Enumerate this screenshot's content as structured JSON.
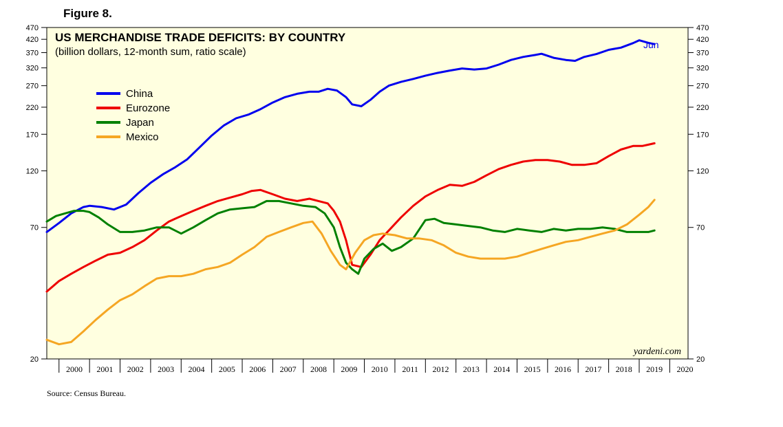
{
  "figure_label": "Figure 8.",
  "source": "Source: Census Bureau.",
  "chart_data": {
    "type": "line",
    "title": "US MERCHANDISE TRADE DEFICITS: BY COUNTRY",
    "subtitle": "(billion dollars, 12-month sum, ratio scale)",
    "watermark": "yardeni.com",
    "end_annotation": "Jun",
    "y_scale": "log",
    "ylim": [
      20,
      470
    ],
    "y_ticks": [
      20,
      70,
      120,
      170,
      220,
      270,
      320,
      370,
      420,
      470
    ],
    "x_range": [
      1999.6,
      2020.6
    ],
    "x_ticks": [
      "2000",
      "2001",
      "2002",
      "2003",
      "2004",
      "2005",
      "2006",
      "2007",
      "2008",
      "2009",
      "2010",
      "2011",
      "2012",
      "2013",
      "2014",
      "2015",
      "2016",
      "2017",
      "2018",
      "2019",
      "2020"
    ],
    "legend_position": "top-left",
    "grid": false,
    "background_color": "#ffffe0",
    "series": [
      {
        "name": "China",
        "color": "#0000ee",
        "x": [
          1999.6,
          2000.0,
          2000.4,
          2000.8,
          2001.0,
          2001.4,
          2001.8,
          2002.2,
          2002.6,
          2003.0,
          2003.4,
          2003.8,
          2004.2,
          2004.6,
          2005.0,
          2005.4,
          2005.8,
          2006.2,
          2006.6,
          2007.0,
          2007.4,
          2007.8,
          2008.2,
          2008.5,
          2008.8,
          2009.1,
          2009.4,
          2009.6,
          2009.9,
          2010.2,
          2010.5,
          2010.8,
          2011.2,
          2011.6,
          2012.0,
          2012.4,
          2012.8,
          2013.2,
          2013.6,
          2014.0,
          2014.4,
          2014.8,
          2015.2,
          2015.6,
          2015.8,
          2016.2,
          2016.6,
          2016.9,
          2017.2,
          2017.6,
          2018.0,
          2018.4,
          2018.8,
          2019.0,
          2019.3,
          2019.5
        ],
        "values": [
          67,
          73,
          80,
          85,
          86,
          85,
          83,
          87,
          97,
          107,
          116,
          124,
          134,
          150,
          168,
          185,
          198,
          205,
          216,
          230,
          242,
          250,
          255,
          255,
          262,
          258,
          242,
          226,
          222,
          236,
          255,
          270,
          280,
          288,
          297,
          305,
          312,
          318,
          315,
          318,
          330,
          345,
          355,
          362,
          366,
          352,
          345,
          342,
          355,
          365,
          380,
          388,
          405,
          416,
          406,
          401
        ]
      },
      {
        "name": "Eurozone",
        "color": "#ee0000",
        "x": [
          1999.6,
          2000.0,
          2000.4,
          2000.8,
          2001.2,
          2001.6,
          2002.0,
          2002.4,
          2002.8,
          2003.2,
          2003.6,
          2004.0,
          2004.4,
          2004.8,
          2005.2,
          2005.6,
          2006.0,
          2006.3,
          2006.6,
          2007.0,
          2007.4,
          2007.8,
          2008.2,
          2008.5,
          2008.8,
          2009.0,
          2009.2,
          2009.4,
          2009.6,
          2009.9,
          2010.2,
          2010.5,
          2010.8,
          2011.2,
          2011.6,
          2012.0,
          2012.4,
          2012.8,
          2013.2,
          2013.6,
          2014.0,
          2014.4,
          2014.8,
          2015.2,
          2015.6,
          2016.0,
          2016.4,
          2016.8,
          2017.2,
          2017.6,
          2018.0,
          2018.4,
          2018.8,
          2019.1,
          2019.3,
          2019.5
        ],
        "values": [
          38,
          42,
          45,
          48,
          51,
          54,
          55,
          58,
          62,
          68,
          74,
          78,
          82,
          86,
          90,
          93,
          96,
          99,
          100,
          96,
          92,
          90,
          92,
          90,
          88,
          82,
          74,
          62,
          49,
          48,
          54,
          62,
          68,
          77,
          86,
          94,
          100,
          105,
          104,
          108,
          115,
          122,
          127,
          131,
          133,
          133,
          131,
          127,
          127,
          129,
          138,
          147,
          152,
          152,
          154,
          156
        ]
      },
      {
        "name": "Japan",
        "color": "#008000",
        "x": [
          1999.6,
          1999.9,
          2000.2,
          2000.5,
          2000.8,
          2001.0,
          2001.3,
          2001.6,
          2002.0,
          2002.4,
          2002.8,
          2003.2,
          2003.6,
          2004.0,
          2004.4,
          2004.8,
          2005.2,
          2005.6,
          2006.0,
          2006.4,
          2006.8,
          2007.2,
          2007.6,
          2008.0,
          2008.4,
          2008.7,
          2009.0,
          2009.2,
          2009.4,
          2009.6,
          2009.8,
          2010.0,
          2010.3,
          2010.6,
          2010.9,
          2011.2,
          2011.6,
          2012.0,
          2012.3,
          2012.6,
          2013.0,
          2013.4,
          2013.8,
          2014.2,
          2014.6,
          2015.0,
          2015.4,
          2015.8,
          2016.2,
          2016.6,
          2017.0,
          2017.4,
          2017.8,
          2018.2,
          2018.6,
          2019.0,
          2019.3,
          2019.5
        ],
        "values": [
          74,
          78,
          80,
          82,
          82,
          81,
          77,
          72,
          67,
          67,
          68,
          70,
          70,
          66,
          70,
          75,
          80,
          83,
          84,
          85,
          90,
          90,
          88,
          86,
          85,
          80,
          70,
          58,
          50,
          47,
          45,
          52,
          57,
          60,
          56,
          58,
          63,
          75,
          76,
          73,
          72,
          71,
          70,
          68,
          67,
          69,
          68,
          67,
          69,
          68,
          69,
          69,
          70,
          69,
          67,
          67,
          67,
          68
        ]
      },
      {
        "name": "Mexico",
        "color": "#f5a623",
        "x": [
          1999.6,
          2000.0,
          2000.4,
          2000.8,
          2001.2,
          2001.6,
          2002.0,
          2002.4,
          2002.8,
          2003.2,
          2003.6,
          2004.0,
          2004.4,
          2004.8,
          2005.2,
          2005.6,
          2006.0,
          2006.4,
          2006.8,
          2007.2,
          2007.6,
          2008.0,
          2008.3,
          2008.6,
          2008.9,
          2009.2,
          2009.4,
          2009.7,
          2010.0,
          2010.3,
          2010.6,
          2011.0,
          2011.4,
          2011.8,
          2012.2,
          2012.6,
          2013.0,
          2013.4,
          2013.8,
          2014.2,
          2014.6,
          2015.0,
          2015.4,
          2015.8,
          2016.2,
          2016.6,
          2017.0,
          2017.4,
          2017.8,
          2018.2,
          2018.6,
          2019.0,
          2019.3,
          2019.5
        ],
        "values": [
          24,
          23,
          23.5,
          26,
          29,
          32,
          35,
          37,
          40,
          43,
          44,
          44,
          45,
          47,
          48,
          50,
          54,
          58,
          64,
          67,
          70,
          73,
          74,
          66,
          56,
          49,
          47,
          55,
          62,
          65,
          66,
          65,
          63,
          63,
          62,
          59,
          55,
          53,
          52,
          52,
          52,
          53,
          55,
          57,
          59,
          61,
          62,
          64,
          66,
          68,
          72,
          79,
          85,
          91
        ]
      }
    ]
  }
}
